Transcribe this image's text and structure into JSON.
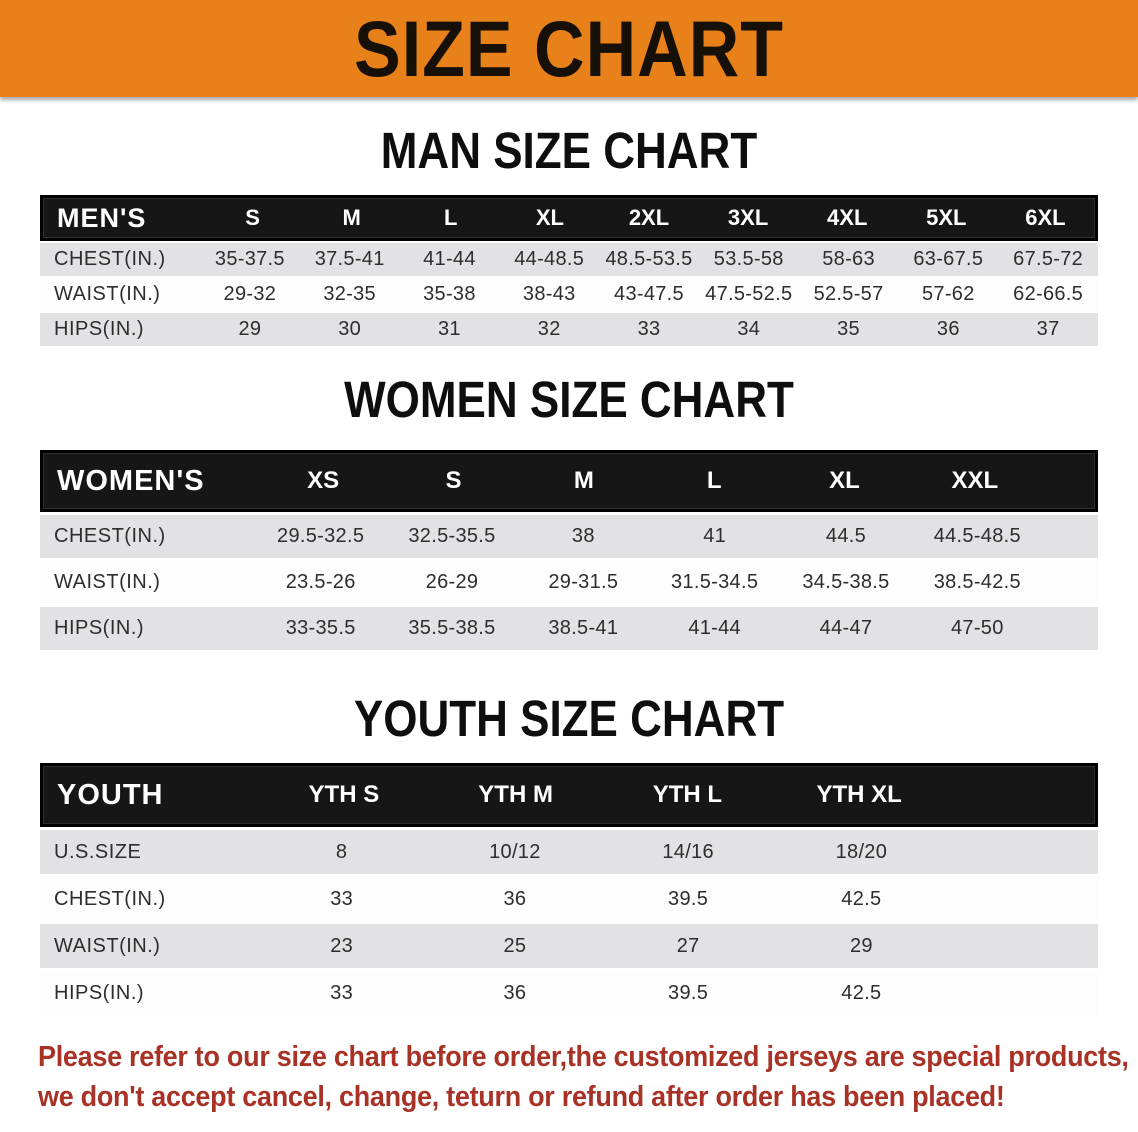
{
  "banner": {
    "title": "SIZE CHART",
    "bg_color": "#E8811A",
    "text_color": "#171008"
  },
  "sections": [
    {
      "heading": "MAN SIZE CHART",
      "table": {
        "header_label": "MEN'S",
        "columns": [
          "S",
          "M",
          "L",
          "XL",
          "2XL",
          "3XL",
          "4XL",
          "5XL",
          "6XL"
        ],
        "rows": [
          {
            "label": "CHEST(IN.)",
            "values": [
              "35-37.5",
              "37.5-41",
              "41-44",
              "44-48.5",
              "48.5-53.5",
              "53.5-58",
              "58-63",
              "63-67.5",
              "67.5-72"
            ]
          },
          {
            "label": "WAIST(IN.)",
            "values": [
              "29-32",
              "32-35",
              "35-38",
              "38-43",
              "43-47.5",
              "47.5-52.5",
              "52.5-57",
              "57-62",
              "62-66.5"
            ]
          },
          {
            "label": "HIPS(IN.)",
            "values": [
              "29",
              "30",
              "31",
              "32",
              "33",
              "34",
              "35",
              "36",
              "37"
            ]
          }
        ]
      }
    },
    {
      "heading": "WOMEN SIZE CHART",
      "table": {
        "header_label": "WOMEN'S",
        "columns": [
          "XS",
          "S",
          "M",
          "L",
          "XL",
          "XXL"
        ],
        "rows": [
          {
            "label": "CHEST(IN.)",
            "values": [
              "29.5-32.5",
              "32.5-35.5",
              "38",
              "41",
              "44.5",
              "44.5-48.5"
            ]
          },
          {
            "label": "WAIST(IN.)",
            "values": [
              "23.5-26",
              "26-29",
              "29-31.5",
              "31.5-34.5",
              "34.5-38.5",
              "38.5-42.5"
            ]
          },
          {
            "label": "HIPS(IN.)",
            "values": [
              "33-35.5",
              "35.5-38.5",
              "38.5-41",
              "41-44",
              "44-47",
              "47-50"
            ]
          }
        ]
      }
    },
    {
      "heading": "YOUTH SIZE CHART",
      "table": {
        "header_label": "YOUTH",
        "columns": [
          "YTH S",
          "YTH M",
          "YTH L",
          "YTH XL"
        ],
        "rows": [
          {
            "label": "U.S.SIZE",
            "values": [
              "8",
              "10/12",
              "14/16",
              "18/20"
            ]
          },
          {
            "label": "CHEST(IN.)",
            "values": [
              "33",
              "36",
              "39.5",
              "42.5"
            ]
          },
          {
            "label": "WAIST(IN.)",
            "values": [
              "23",
              "25",
              "27",
              "29"
            ]
          },
          {
            "label": "HIPS(IN.)",
            "values": [
              "33",
              "36",
              "39.5",
              "42.5"
            ]
          }
        ]
      }
    }
  ],
  "disclaimer": {
    "line1": "Please refer to our size chart before order,the customized jerseys are special products,",
    "line2": "we don't accept cancel, change, teturn or refund after order has been placed!",
    "color": "#A93226"
  }
}
